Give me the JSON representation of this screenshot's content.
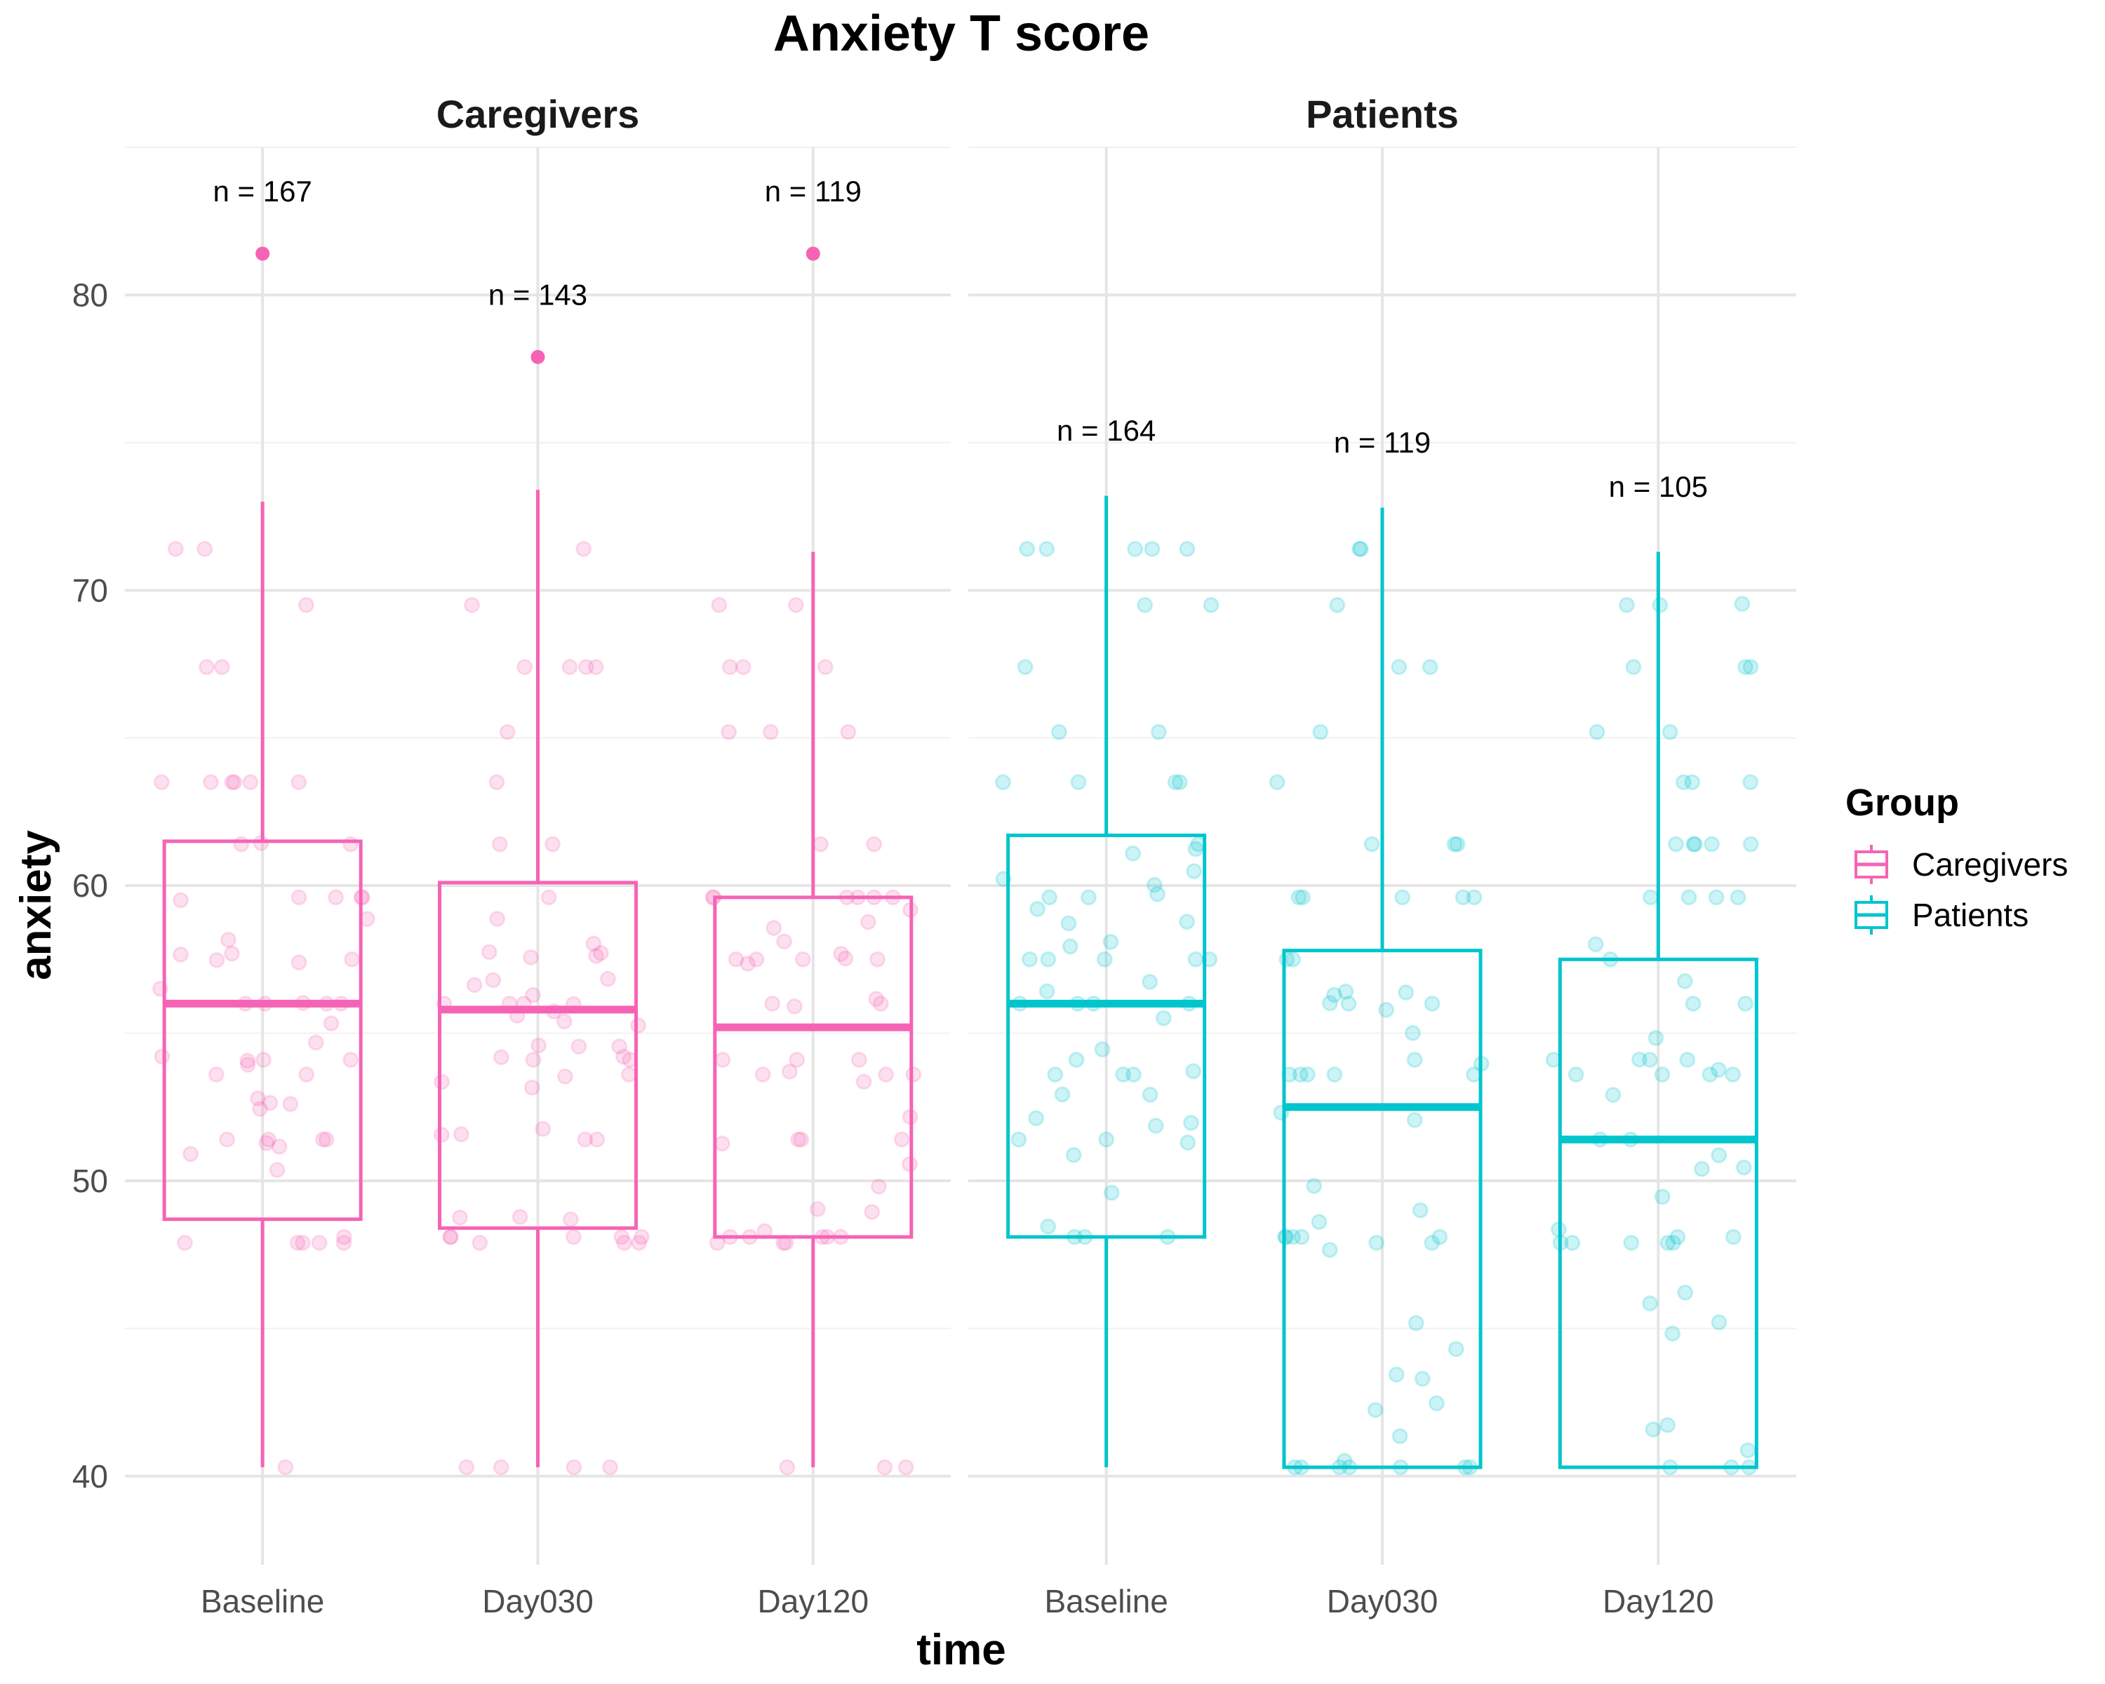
{
  "chart_data": {
    "type": "boxplot",
    "title": "Anxiety T score",
    "xlabel": "time",
    "ylabel": "anxiety",
    "ylim": [
      37,
      85
    ],
    "yticks": [
      40,
      50,
      60,
      70,
      80
    ],
    "categories": [
      "Baseline",
      "Day030",
      "Day120"
    ],
    "grid": true,
    "legend": {
      "title": "Group",
      "position": "right",
      "entries": [
        {
          "label": "Caregivers",
          "color": "#F564B4"
        },
        {
          "label": "Patients",
          "color": "#00C5CD"
        }
      ]
    },
    "panels": [
      {
        "name": "Caregivers",
        "color": "#F564B4",
        "boxes": [
          {
            "category": "Baseline",
            "n_label": "n = 167",
            "n_y": 83.5,
            "min": 40.3,
            "q1": 48.7,
            "median": 56.0,
            "q3": 61.5,
            "max": 73.0,
            "outliers": [
              81.4
            ]
          },
          {
            "category": "Day030",
            "n_label": "n = 143",
            "n_y": 80.0,
            "min": 40.3,
            "q1": 48.4,
            "median": 55.8,
            "q3": 60.1,
            "max": 73.4,
            "outliers": [
              77.9
            ]
          },
          {
            "category": "Day120",
            "n_label": "n = 119",
            "n_y": 83.5,
            "min": 40.3,
            "q1": 48.1,
            "median": 55.2,
            "q3": 59.6,
            "max": 71.3,
            "outliers": [
              81.4
            ]
          }
        ]
      },
      {
        "name": "Patients",
        "color": "#00C5CD",
        "boxes": [
          {
            "category": "Baseline",
            "n_label": "n = 164",
            "n_y": 75.4,
            "min": 40.3,
            "q1": 48.1,
            "median": 56.0,
            "q3": 61.7,
            "max": 73.2,
            "outliers": []
          },
          {
            "category": "Day030",
            "n_label": "n = 119",
            "n_y": 75.0,
            "min": 40.3,
            "q1": 40.3,
            "median": 52.5,
            "q3": 57.8,
            "max": 72.8,
            "outliers": []
          },
          {
            "category": "Day120",
            "n_label": "n = 105",
            "n_y": 73.5,
            "min": 40.3,
            "q1": 40.3,
            "median": 51.4,
            "q3": 57.5,
            "max": 71.3,
            "outliers": []
          }
        ]
      }
    ],
    "jitter_levels": [
      40.3,
      47.9,
      48.1,
      51.4,
      53.6,
      54.1,
      56.0,
      57.5,
      59.6,
      61.4,
      63.5,
      65.2,
      67.4,
      69.5,
      71.4
    ]
  }
}
